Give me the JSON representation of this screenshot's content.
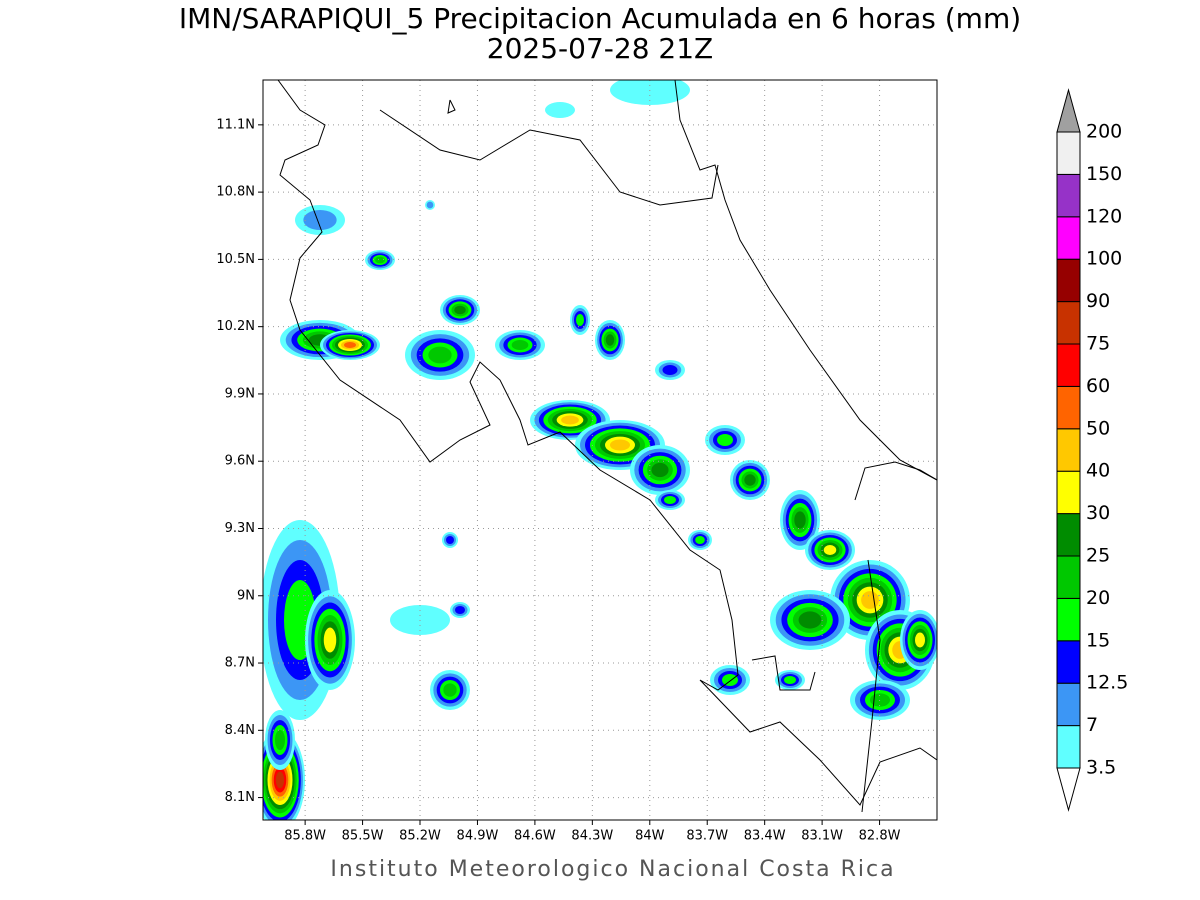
{
  "title": "IMN/SARAPIQUI_5 Precipitacion Acumulada en 6 horas (mm)",
  "subtitle": "2025-07-28 21Z",
  "footer": "Instituto Meteorologico Nacional Costa Rica",
  "xlim": [
    -86.02,
    -82.5
  ],
  "ylim": [
    8.0,
    11.3
  ],
  "grid": true,
  "xticks": [
    {
      "value": -85.8,
      "label": "85.8W"
    },
    {
      "value": -85.5,
      "label": "85.5W"
    },
    {
      "value": -85.2,
      "label": "85.2W"
    },
    {
      "value": -84.9,
      "label": "84.9W"
    },
    {
      "value": -84.6,
      "label": "84.6W"
    },
    {
      "value": -84.3,
      "label": "84.3W"
    },
    {
      "value": -84,
      "label": "84W"
    },
    {
      "value": -83.7,
      "label": "83.7W"
    },
    {
      "value": -83.4,
      "label": "83.4W"
    },
    {
      "value": -83.1,
      "label": "83.1W"
    },
    {
      "value": -82.8,
      "label": "82.8W"
    }
  ],
  "yticks": [
    {
      "value": 8.1,
      "label": "8.1N"
    },
    {
      "value": 8.4,
      "label": "8.4N"
    },
    {
      "value": 8.7,
      "label": "8.7N"
    },
    {
      "value": 9,
      "label": "9N"
    },
    {
      "value": 9.3,
      "label": "9.3N"
    },
    {
      "value": 9.6,
      "label": "9.6N"
    },
    {
      "value": 9.9,
      "label": "9.9N"
    },
    {
      "value": 10.2,
      "label": "10.2N"
    },
    {
      "value": 10.5,
      "label": "10.5N"
    },
    {
      "value": 10.8,
      "label": "10.8N"
    },
    {
      "value": 11.1,
      "label": "11.1N"
    }
  ],
  "colorbar": {
    "levels": [
      3.5,
      7,
      12.5,
      15,
      20,
      25,
      30,
      40,
      50,
      60,
      75,
      90,
      100,
      120,
      150,
      200
    ],
    "colors": [
      "#60ffff",
      "#3c96f5",
      "#0000ff",
      "#00ff00",
      "#00c800",
      "#008c00",
      "#ffff00",
      "#ffc800",
      "#ff6400",
      "#ff0000",
      "#c83200",
      "#960000",
      "#ff00ff",
      "#9632c8",
      "#f0f0f0"
    ],
    "under_color": "#ffffff",
    "over_color": "#a0a0a0"
  }
}
